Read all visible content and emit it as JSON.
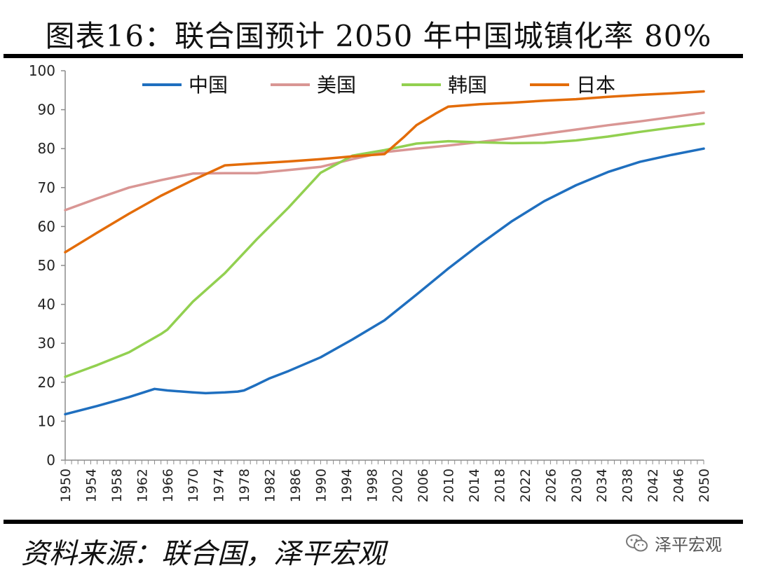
{
  "title": "图表16：联合国预计 2050 年中国城镇化率 80%",
  "source": "资料来源：联合国，泽平宏观",
  "watermark": "泽平宏观",
  "chart_data": {
    "type": "line",
    "title": "图表16：联合国预计 2050 年中国城镇化率 80%",
    "xlabel": "",
    "ylabel": "",
    "xlim": [
      1950,
      2050
    ],
    "ylim": [
      0,
      100
    ],
    "yticks": [
      0,
      10,
      20,
      30,
      40,
      50,
      60,
      70,
      80,
      90,
      100
    ],
    "xticks": [
      1950,
      1954,
      1958,
      1962,
      1966,
      1970,
      1974,
      1978,
      1982,
      1986,
      1990,
      1994,
      1998,
      2002,
      2006,
      2010,
      2014,
      2018,
      2022,
      2026,
      2030,
      2034,
      2038,
      2042,
      2046,
      2050
    ],
    "legend_position": "top",
    "series": [
      {
        "name": "中国",
        "color": "#1f6fbf",
        "points": [
          [
            1950,
            11.8
          ],
          [
            1955,
            13.9
          ],
          [
            1960,
            16.2
          ],
          [
            1964,
            18.3
          ],
          [
            1966,
            17.9
          ],
          [
            1970,
            17.4
          ],
          [
            1972,
            17.2
          ],
          [
            1975,
            17.4
          ],
          [
            1977,
            17.6
          ],
          [
            1978,
            17.9
          ],
          [
            1980,
            19.4
          ],
          [
            1982,
            21.0
          ],
          [
            1985,
            22.9
          ],
          [
            1990,
            26.4
          ],
          [
            1995,
            31.0
          ],
          [
            2000,
            35.9
          ],
          [
            2005,
            42.5
          ],
          [
            2010,
            49.2
          ],
          [
            2015,
            55.5
          ],
          [
            2020,
            61.4
          ],
          [
            2025,
            66.5
          ],
          [
            2030,
            70.6
          ],
          [
            2035,
            74.0
          ],
          [
            2040,
            76.6
          ],
          [
            2045,
            78.4
          ],
          [
            2050,
            80.0
          ]
        ]
      },
      {
        "name": "美国",
        "color": "#d99694",
        "points": [
          [
            1950,
            64.2
          ],
          [
            1955,
            67.2
          ],
          [
            1960,
            70.0
          ],
          [
            1965,
            71.9
          ],
          [
            1970,
            73.6
          ],
          [
            1975,
            73.7
          ],
          [
            1980,
            73.7
          ],
          [
            1985,
            74.5
          ],
          [
            1990,
            75.3
          ],
          [
            1995,
            77.3
          ],
          [
            2000,
            79.1
          ],
          [
            2005,
            80.0
          ],
          [
            2010,
            80.8
          ],
          [
            2015,
            81.7
          ],
          [
            2020,
            82.7
          ],
          [
            2025,
            83.8
          ],
          [
            2030,
            84.9
          ],
          [
            2035,
            86.0
          ],
          [
            2040,
            87.0
          ],
          [
            2045,
            88.1
          ],
          [
            2050,
            89.2
          ]
        ]
      },
      {
        "name": "韩国",
        "color": "#92d050",
        "points": [
          [
            1950,
            21.4
          ],
          [
            1955,
            24.4
          ],
          [
            1960,
            27.7
          ],
          [
            1965,
            32.4
          ],
          [
            1966,
            33.5
          ],
          [
            1970,
            40.7
          ],
          [
            1975,
            48.0
          ],
          [
            1980,
            56.7
          ],
          [
            1985,
            64.9
          ],
          [
            1990,
            73.8
          ],
          [
            1995,
            78.2
          ],
          [
            2000,
            79.6
          ],
          [
            2005,
            81.3
          ],
          [
            2010,
            81.9
          ],
          [
            2015,
            81.6
          ],
          [
            2020,
            81.4
          ],
          [
            2025,
            81.5
          ],
          [
            2030,
            82.1
          ],
          [
            2035,
            83.1
          ],
          [
            2040,
            84.3
          ],
          [
            2045,
            85.4
          ],
          [
            2050,
            86.4
          ]
        ]
      },
      {
        "name": "日本",
        "color": "#e36c09",
        "points": [
          [
            1950,
            53.4
          ],
          [
            1955,
            58.4
          ],
          [
            1960,
            63.3
          ],
          [
            1965,
            67.9
          ],
          [
            1970,
            71.9
          ],
          [
            1975,
            75.7
          ],
          [
            1980,
            76.2
          ],
          [
            1985,
            76.7
          ],
          [
            1990,
            77.3
          ],
          [
            1995,
            78.0
          ],
          [
            2000,
            78.6
          ],
          [
            2003,
            82.9
          ],
          [
            2005,
            86.0
          ],
          [
            2008,
            89.0
          ],
          [
            2010,
            90.8
          ],
          [
            2015,
            91.4
          ],
          [
            2020,
            91.8
          ],
          [
            2025,
            92.3
          ],
          [
            2030,
            92.7
          ],
          [
            2035,
            93.3
          ],
          [
            2040,
            93.8
          ],
          [
            2045,
            94.2
          ],
          [
            2050,
            94.7
          ]
        ]
      }
    ]
  }
}
